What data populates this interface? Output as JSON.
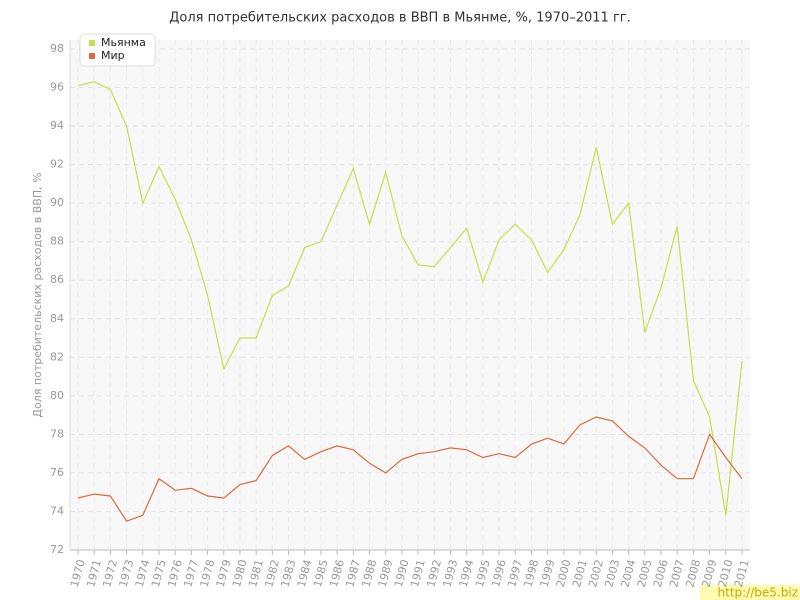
{
  "chart_data": {
    "type": "line",
    "title": "Доля потребительских расходов в ВВП в Мьянме, %, 1970–2011 гг.",
    "y_label": "Доля потребительских расходов в ВВП, %",
    "watermark": "http://be5.biz",
    "x": [
      1970,
      1971,
      1972,
      1973,
      1974,
      1975,
      1976,
      1977,
      1978,
      1979,
      1980,
      1981,
      1982,
      1983,
      1984,
      1985,
      1986,
      1987,
      1988,
      1989,
      1990,
      1991,
      1992,
      1993,
      1994,
      1995,
      1996,
      1997,
      1998,
      1999,
      2000,
      2001,
      2002,
      2003,
      2004,
      2005,
      2006,
      2007,
      2008,
      2009,
      2010,
      2011
    ],
    "xlim": [
      1970,
      2011
    ],
    "series": [
      {
        "name": "Мьянма",
        "color": "#c5df4a",
        "values": [
          96.1,
          96.3,
          95.9,
          94.0,
          90.0,
          91.9,
          90.2,
          88.1,
          85.2,
          81.4,
          83.0,
          83.0,
          85.2,
          85.7,
          87.7,
          88.0,
          89.9,
          91.8,
          88.9,
          91.6,
          88.3,
          86.8,
          86.7,
          87.7,
          88.7,
          85.9,
          88.1,
          88.9,
          88.1,
          86.4,
          87.6,
          89.4,
          92.9,
          88.9,
          90.0,
          83.3,
          85.6,
          88.8,
          80.8,
          78.9,
          73.8,
          81.8
        ]
      },
      {
        "name": "Мир",
        "color": "#e0683a",
        "values": [
          74.7,
          74.9,
          74.8,
          73.5,
          73.8,
          75.7,
          75.1,
          75.2,
          74.8,
          74.7,
          75.4,
          75.6,
          76.9,
          77.4,
          76.7,
          77.1,
          77.4,
          77.2,
          76.5,
          76.0,
          76.7,
          77.0,
          77.1,
          77.3,
          77.2,
          76.8,
          77.0,
          76.8,
          77.5,
          77.8,
          77.5,
          78.5,
          78.9,
          78.7,
          77.9,
          77.3,
          76.4,
          75.7,
          75.7,
          78.0,
          76.8,
          75.7
        ]
      }
    ],
    "ylim": [
      72,
      98
    ],
    "yticks": [
      72,
      74,
      76,
      78,
      80,
      82,
      84,
      86,
      88,
      90,
      92,
      94,
      96,
      98
    ],
    "grid": true,
    "legend": "top-left"
  }
}
